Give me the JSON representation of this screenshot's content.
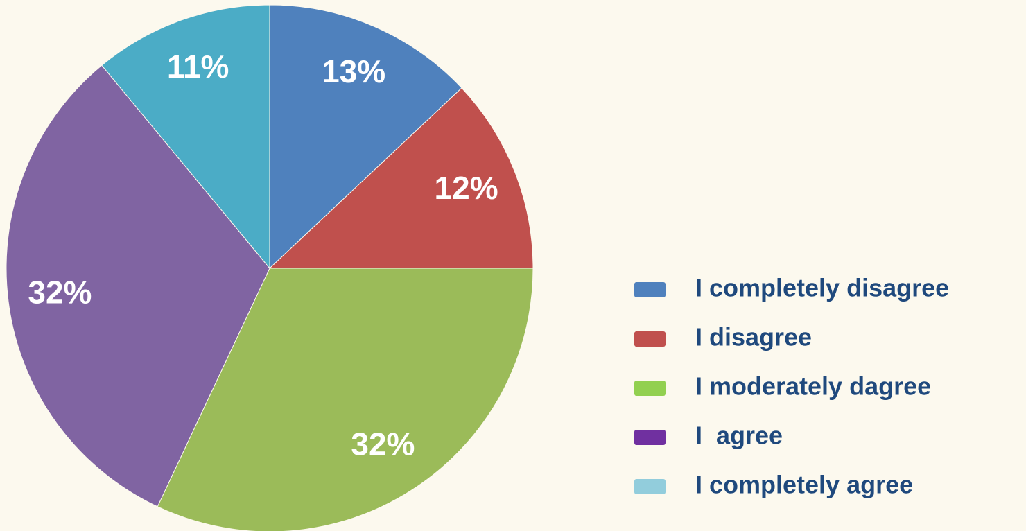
{
  "chart_data": {
    "type": "pie",
    "categories": [
      "I completely disagree",
      "I disagree",
      "I moderately dagree",
      "I  agree",
      "I completely agree"
    ],
    "values": [
      13,
      12,
      32,
      32,
      11
    ],
    "value_labels": [
      "13%",
      "12%",
      "32%",
      "32%",
      "11%"
    ],
    "colors": [
      "#4f81bd",
      "#c0504d",
      "#9bbb59",
      "#8064a2",
      "#4bacc6"
    ],
    "legend_colors": [
      "#4f81bd",
      "#c0504d",
      "#92d050",
      "#7030a0",
      "#92cddc"
    ],
    "legend": "right"
  }
}
